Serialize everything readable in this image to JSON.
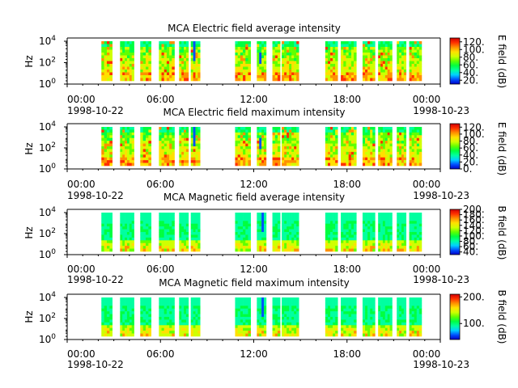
{
  "chart_data": [
    {
      "type": "heatmap",
      "title": "MCA  Electric field average intensity",
      "ylabel": "Hz",
      "y_ticks": [
        "0",
        "2",
        "4"
      ],
      "y_scale": "log",
      "x_ticks": [
        "00:00",
        "06:00",
        "12:00",
        "18:00",
        "00:00"
      ],
      "x_date_labels": [
        "1998-10-22",
        "1998-10-23"
      ],
      "x_range": [
        "1998-10-22 00:00",
        "1998-10-23 00:00"
      ],
      "colorbar_label": "E field (dB)",
      "colorbar_ticks": [
        "20.",
        "40.",
        "60.",
        "80.",
        "100.",
        "120."
      ],
      "colorbar_range": [
        10,
        130
      ],
      "data_segments_hours": [
        [
          2.2,
          2.9
        ],
        [
          3.4,
          4.3
        ],
        [
          4.7,
          5.4
        ],
        [
          5.9,
          6.9
        ],
        [
          7.2,
          7.8
        ],
        [
          7.95,
          8.55
        ],
        [
          10.8,
          11.8
        ],
        [
          12.2,
          12.8
        ],
        [
          13.2,
          13.7
        ],
        [
          13.8,
          14.9
        ],
        [
          16.6,
          17.4
        ],
        [
          17.6,
          18.6
        ],
        [
          19.0,
          19.8
        ],
        [
          20.0,
          20.9
        ],
        [
          21.2,
          21.8
        ],
        [
          22.0,
          22.8
        ]
      ]
    },
    {
      "type": "heatmap",
      "title": "MCA  Electric field maximum intensity",
      "ylabel": "Hz",
      "y_ticks": [
        "0",
        "2",
        "4"
      ],
      "y_scale": "log",
      "x_ticks": [
        "00:00",
        "06:00",
        "12:00",
        "18:00",
        "00:00"
      ],
      "x_date_labels": [
        "1998-10-22",
        "1998-10-23"
      ],
      "x_range": [
        "1998-10-22 00:00",
        "1998-10-23 00:00"
      ],
      "colorbar_label": "E field (dB)",
      "colorbar_ticks": [
        "0.",
        "20.",
        "40.",
        "60.",
        "80.",
        "100.",
        "120."
      ],
      "colorbar_range": [
        0,
        130
      ],
      "data_segments_hours": [
        [
          2.2,
          2.9
        ],
        [
          3.4,
          4.3
        ],
        [
          4.7,
          5.4
        ],
        [
          5.9,
          6.9
        ],
        [
          7.2,
          7.8
        ],
        [
          7.95,
          8.55
        ],
        [
          10.8,
          11.8
        ],
        [
          12.2,
          12.8
        ],
        [
          13.2,
          13.7
        ],
        [
          13.8,
          14.9
        ],
        [
          16.6,
          17.4
        ],
        [
          17.6,
          18.6
        ],
        [
          19.0,
          19.8
        ],
        [
          20.0,
          20.9
        ],
        [
          21.2,
          21.8
        ],
        [
          22.0,
          22.8
        ]
      ]
    },
    {
      "type": "heatmap",
      "title": "MCA  Magnetic field average intensity",
      "ylabel": "Hz",
      "y_ticks": [
        "0",
        "2",
        "4"
      ],
      "y_scale": "log",
      "x_ticks": [
        "00:00",
        "06:00",
        "12:00",
        "18:00",
        "00:00"
      ],
      "x_date_labels": [
        "1998-10-22",
        "1998-10-23"
      ],
      "x_range": [
        "1998-10-22 00:00",
        "1998-10-23 00:00"
      ],
      "colorbar_label": "B field (dB)",
      "colorbar_ticks": [
        "40.",
        "60.",
        "80.",
        "100.",
        "120.",
        "140.",
        "160.",
        "180.",
        "200."
      ],
      "colorbar_range": [
        30,
        200
      ],
      "data_segments_hours": [
        [
          2.2,
          2.9
        ],
        [
          3.4,
          4.3
        ],
        [
          4.7,
          5.4
        ],
        [
          5.9,
          6.9
        ],
        [
          7.2,
          7.8
        ],
        [
          7.95,
          8.55
        ],
        [
          10.8,
          11.8
        ],
        [
          12.2,
          12.8
        ],
        [
          13.2,
          13.7
        ],
        [
          13.8,
          14.9
        ],
        [
          16.6,
          17.4
        ],
        [
          17.6,
          18.6
        ],
        [
          19.0,
          19.8
        ],
        [
          20.0,
          20.9
        ],
        [
          21.2,
          21.8
        ],
        [
          22.0,
          22.8
        ]
      ]
    },
    {
      "type": "heatmap",
      "title": "MCA  Magnetic field maximum intensity",
      "ylabel": "Hz",
      "y_ticks": [
        "0",
        "2",
        "4"
      ],
      "y_scale": "log",
      "x_ticks": [
        "00:00",
        "06:00",
        "12:00",
        "18:00",
        "00:00"
      ],
      "x_date_labels": [
        "1998-10-22",
        "1998-10-23"
      ],
      "x_range": [
        "1998-10-22 00:00",
        "1998-10-23 00:00"
      ],
      "colorbar_label": "B field (dB)",
      "colorbar_ticks": [
        "100.",
        "200."
      ],
      "colorbar_range": [
        40,
        210
      ],
      "data_segments_hours": [
        [
          2.2,
          2.9
        ],
        [
          3.4,
          4.3
        ],
        [
          4.7,
          5.4
        ],
        [
          5.9,
          6.9
        ],
        [
          7.2,
          7.8
        ],
        [
          7.95,
          8.55
        ],
        [
          10.8,
          11.8
        ],
        [
          12.2,
          12.8
        ],
        [
          13.2,
          13.7
        ],
        [
          13.8,
          14.9
        ],
        [
          16.6,
          17.4
        ],
        [
          17.6,
          18.6
        ],
        [
          19.0,
          19.8
        ],
        [
          20.0,
          20.9
        ],
        [
          21.2,
          21.8
        ],
        [
          22.0,
          22.8
        ]
      ]
    }
  ],
  "colors": {
    "colormap": [
      "#0000c8",
      "#0050ff",
      "#00d0ff",
      "#00ffa0",
      "#00ff40",
      "#60ff00",
      "#d0ff00",
      "#ffe000",
      "#ff9000",
      "#ff3000",
      "#d00000"
    ]
  }
}
